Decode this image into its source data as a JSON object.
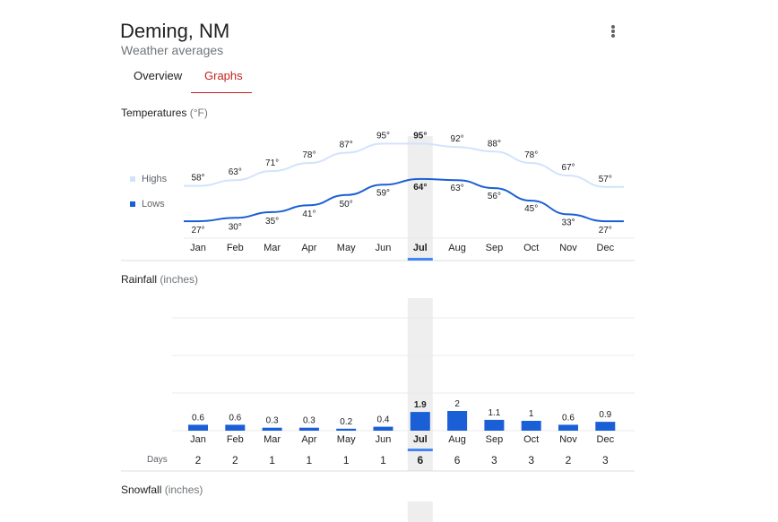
{
  "header": {
    "title": "Deming, NM",
    "subtitle": "Weather averages",
    "menu_icon": "more-vert-icon"
  },
  "tabs": [
    {
      "label": "Overview",
      "selected": false
    },
    {
      "label": "Graphs",
      "selected": true
    }
  ],
  "colors": {
    "highs": "#d2e3fc",
    "lows": "#1a5fd6",
    "bar": "#1a5fd6",
    "selected_band": "#eeeeee",
    "selected_marker": "#4285f4",
    "tab_accent": "#c5221f"
  },
  "selected_month": "Jul",
  "chart_data": [
    {
      "type": "line",
      "title": "Temperatures",
      "unit": "(°F)",
      "categories": [
        "Jan",
        "Feb",
        "Mar",
        "Apr",
        "May",
        "Jun",
        "Jul",
        "Aug",
        "Sep",
        "Oct",
        "Nov",
        "Dec"
      ],
      "series": [
        {
          "name": "Highs",
          "values": [
            58,
            63,
            71,
            78,
            87,
            95,
            95,
            92,
            88,
            78,
            67,
            57
          ]
        },
        {
          "name": "Lows",
          "values": [
            27,
            30,
            35,
            41,
            50,
            59,
            64,
            63,
            56,
            45,
            33,
            27
          ]
        }
      ],
      "value_suffix": "°",
      "legend": "left",
      "grid": false
    },
    {
      "type": "bar",
      "title": "Rainfall",
      "unit": "(inches)",
      "categories": [
        "Jan",
        "Feb",
        "Mar",
        "Apr",
        "May",
        "Jun",
        "Jul",
        "Aug",
        "Sep",
        "Oct",
        "Nov",
        "Dec"
      ],
      "values": [
        0.6,
        0.6,
        0.3,
        0.3,
        0.2,
        0.4,
        1.9,
        2,
        1.1,
        1,
        0.6,
        0.9
      ],
      "days_label": "Days",
      "days": [
        2,
        2,
        1,
        1,
        1,
        1,
        6,
        6,
        3,
        3,
        2,
        3
      ],
      "grid": true
    },
    {
      "type": "bar",
      "title": "Snowfall",
      "unit": "(inches)"
    }
  ]
}
